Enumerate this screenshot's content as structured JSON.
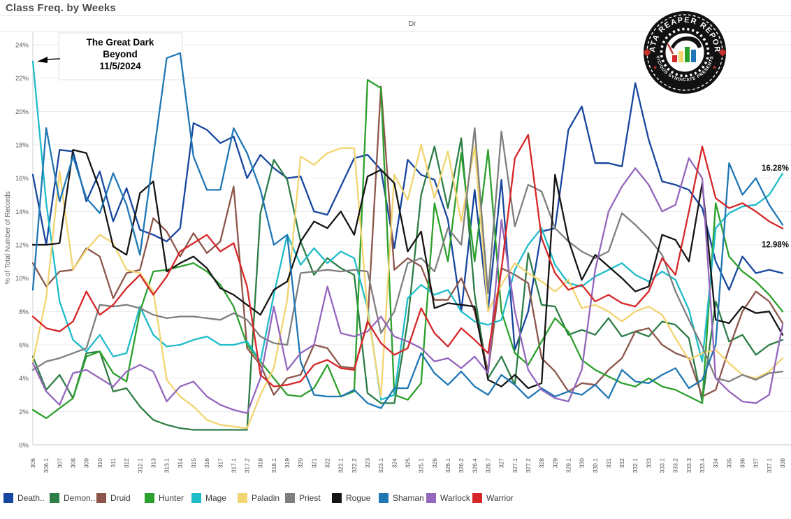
{
  "window": {
    "title": "Class Freq. by Weeks"
  },
  "header": {
    "top_axis_label": "Dr"
  },
  "y_axis": {
    "title": "% of Total Number of Records",
    "tick_suffix": "%"
  },
  "annotation": {
    "lines": [
      "The Great Dark",
      "Beyond",
      "11/5/2024"
    ]
  },
  "end_labels": [
    {
      "text": "16.28%",
      "series": "Mage"
    },
    {
      "text": "12.98%",
      "series": "Warrior"
    }
  ],
  "logo": {
    "top_text": "DATA REAPER REPORT",
    "bottom_text": "VICIOUS SYNDICATE PRESENTS",
    "bar_colors": [
      "#d62728",
      "#f2d470",
      "#2ca02c",
      "#1f77b4"
    ],
    "badge_color": "#111111",
    "accent_color": "#c8322b"
  },
  "chart_data": {
    "type": "line",
    "title": "Class Freq. by Weeks",
    "xlabel": "Dr",
    "ylabel": "% of Total Number of Records",
    "ylim": [
      0,
      24.8
    ],
    "yticks": [
      0,
      2,
      4,
      6,
      8,
      10,
      12,
      14,
      16,
      18,
      20,
      22,
      24
    ],
    "grid": true,
    "legend_position": "bottom",
    "categories": [
      "306",
      "306.1",
      "307",
      "308",
      "309",
      "310",
      "311",
      "312",
      "312.1",
      "313",
      "313.1",
      "314",
      "315",
      "316",
      "317",
      "317.1",
      "317.2",
      "318",
      "318.1",
      "319",
      "320",
      "321",
      "322",
      "322.1",
      "322.2",
      "323",
      "323.1",
      "324",
      "325",
      "325.1",
      "326",
      "326.1",
      "326.2",
      "326.4",
      "326.7",
      "327",
      "327.1",
      "327.2",
      "328",
      "329",
      "329.1",
      "330",
      "330.1",
      "331",
      "332",
      "332.1",
      "333",
      "333.1",
      "333.2",
      "333.3",
      "333.4",
      "334",
      "335",
      "336",
      "337",
      "337.1",
      "338"
    ],
    "series": [
      {
        "name": "Death Knight",
        "legend_label": "Death..",
        "color": "#17469e",
        "values": [
          16.2,
          12.0,
          17.7,
          17.6,
          14.6,
          16.4,
          13.4,
          15.4,
          12.9,
          12.6,
          12.2,
          13.0,
          19.3,
          18.9,
          18.1,
          18.5,
          16.0,
          17.4,
          16.6,
          16.0,
          16.1,
          14.0,
          13.8,
          15.5,
          17.2,
          17.4,
          16.5,
          11.8,
          17.1,
          16.2,
          15.9,
          13.5,
          8.0,
          15.3,
          8.1,
          15.9,
          5.7,
          8.0,
          12.8,
          13.0,
          18.9,
          20.3,
          16.9,
          16.9,
          16.7,
          21.7,
          18.3,
          15.8,
          15.6,
          15.3,
          14.2,
          11.0,
          9.3,
          11.3,
          10.3,
          10.5,
          10.3
        ]
      },
      {
        "name": "Demon Hunter",
        "legend_label": "Demon..",
        "color": "#2d7d46",
        "values": [
          5.3,
          3.3,
          4.2,
          2.8,
          5.5,
          5.6,
          3.2,
          3.4,
          2.3,
          1.5,
          1.2,
          1.0,
          0.9,
          0.9,
          0.9,
          0.9,
          0.9,
          13.9,
          17.1,
          15.9,
          12.2,
          10.2,
          11.2,
          10.6,
          10.2,
          3.1,
          2.5,
          2.5,
          7.4,
          15.0,
          17.9,
          14.2,
          18.4,
          9.0,
          4.0,
          5.3,
          3.6,
          11.5,
          8.4,
          8.3,
          6.6,
          6.9,
          6.6,
          7.6,
          6.5,
          6.8,
          6.5,
          7.4,
          7.2,
          6.4,
          2.6,
          8.6,
          6.2,
          6.6,
          5.4,
          6.0,
          6.3
        ]
      },
      {
        "name": "Druid",
        "legend_label": "Druid",
        "color": "#8c564b",
        "values": [
          10.9,
          9.5,
          10.4,
          10.5,
          11.8,
          11.3,
          8.8,
          10.3,
          10.5,
          13.6,
          12.8,
          11.3,
          12.7,
          11.5,
          12.2,
          15.5,
          5.8,
          4.8,
          3.0,
          4.0,
          4.2,
          6.0,
          5.8,
          4.7,
          4.6,
          7.3,
          21.5,
          10.5,
          11.2,
          10.7,
          8.7,
          8.7,
          10.0,
          8.0,
          4.4,
          10.6,
          10.2,
          9.7,
          5.2,
          4.4,
          3.2,
          3.7,
          3.6,
          4.5,
          5.2,
          6.8,
          7.0,
          6.0,
          5.5,
          5.2,
          2.9,
          3.3,
          5.8,
          8.0,
          9.2,
          8.6,
          7.3
        ]
      },
      {
        "name": "Hunter",
        "legend_label": "Hunter",
        "color": "#2ca02c",
        "values": [
          2.1,
          1.6,
          2.2,
          2.8,
          5.3,
          5.6,
          4.3,
          3.8,
          8.0,
          10.4,
          10.5,
          10.7,
          10.9,
          10.4,
          9.6,
          8.3,
          6.0,
          5.0,
          4.0,
          3.0,
          2.9,
          3.4,
          4.8,
          2.9,
          3.2,
          21.9,
          21.4,
          3.0,
          2.7,
          3.7,
          14.5,
          11.0,
          17.5,
          11.0,
          17.7,
          8.0,
          5.5,
          4.8,
          6.2,
          7.6,
          6.8,
          5.1,
          4.5,
          4.1,
          3.7,
          3.5,
          4.0,
          3.5,
          3.3,
          2.9,
          2.5,
          14.5,
          11.3,
          10.4,
          9.8,
          9.0,
          8.0
        ]
      },
      {
        "name": "Mage",
        "legend_label": "Mage",
        "color": "#1fbcc9",
        "values": [
          23.0,
          14.5,
          8.6,
          6.3,
          5.6,
          6.6,
          5.3,
          5.5,
          8.3,
          6.6,
          5.9,
          6.0,
          6.3,
          6.5,
          6.0,
          6.0,
          6.2,
          5.0,
          9.0,
          12.6,
          10.8,
          11.8,
          10.9,
          11.6,
          11.2,
          8.2,
          2.7,
          3.0,
          8.8,
          9.6,
          9.0,
          9.3,
          8.0,
          7.4,
          7.2,
          7.5,
          10.5,
          12.0,
          13.0,
          10.8,
          9.7,
          9.5,
          10.1,
          10.5,
          10.9,
          10.2,
          9.8,
          10.4,
          9.9,
          8.1,
          5.0,
          13.0,
          13.9,
          14.3,
          14.4,
          15.0,
          16.28
        ]
      },
      {
        "name": "Paladin",
        "legend_label": "Paladin",
        "color": "#f2d470",
        "values": [
          5.0,
          8.8,
          16.4,
          10.5,
          11.7,
          12.6,
          12.1,
          10.5,
          10.3,
          9.2,
          3.9,
          2.9,
          2.3,
          1.5,
          1.2,
          1.1,
          1.0,
          3.0,
          4.6,
          8.7,
          17.3,
          16.8,
          17.5,
          17.8,
          17.8,
          8.0,
          2.9,
          16.2,
          14.7,
          18.0,
          14.8,
          17.6,
          13.4,
          17.9,
          8.0,
          9.6,
          10.9,
          10.3,
          9.8,
          9.2,
          9.9,
          8.2,
          8.4,
          8.0,
          7.4,
          8.0,
          8.3,
          7.8,
          6.4,
          5.1,
          5.5,
          5.7,
          4.9,
          4.2,
          4.0,
          4.4,
          5.2
        ]
      },
      {
        "name": "Priest",
        "legend_label": "Priest",
        "color": "#7f7f7f",
        "values": [
          4.5,
          5.0,
          5.2,
          5.5,
          5.8,
          8.4,
          8.3,
          8.4,
          8.2,
          7.8,
          7.6,
          7.7,
          7.7,
          7.6,
          7.5,
          7.9,
          7.5,
          6.5,
          6.1,
          6.0,
          10.3,
          10.4,
          10.5,
          10.4,
          10.5,
          10.4,
          6.7,
          8.0,
          10.9,
          11.2,
          10.4,
          13.0,
          12.0,
          19.0,
          9.1,
          18.8,
          13.1,
          15.6,
          15.2,
          13.0,
          12.2,
          11.6,
          11.2,
          11.6,
          13.9,
          13.2,
          12.4,
          11.4,
          9.2,
          7.5,
          5.9,
          4.0,
          3.8,
          4.2,
          3.9,
          4.3,
          4.4
        ]
      },
      {
        "name": "Rogue",
        "legend_label": "Rogue",
        "color": "#141414",
        "values": [
          12.0,
          12.0,
          12.1,
          17.7,
          17.5,
          15.3,
          11.9,
          11.4,
          15.1,
          15.8,
          10.4,
          10.9,
          11.3,
          10.6,
          9.4,
          9.0,
          8.4,
          7.8,
          9.3,
          9.8,
          12.2,
          13.4,
          13.0,
          14.0,
          12.6,
          16.1,
          16.5,
          15.7,
          11.6,
          12.8,
          8.2,
          8.5,
          8.4,
          8.3,
          3.9,
          3.5,
          4.2,
          3.4,
          3.7,
          16.2,
          12.3,
          9.9,
          11.4,
          10.7,
          10.0,
          9.2,
          9.5,
          12.6,
          12.3,
          11.0,
          15.7,
          7.5,
          7.3,
          8.3,
          7.9,
          8.0,
          6.6
        ]
      },
      {
        "name": "Shaman",
        "legend_label": "Shaman",
        "color": "#1f77b4",
        "values": [
          9.3,
          19.0,
          14.6,
          17.3,
          14.8,
          13.9,
          16.3,
          14.4,
          11.4,
          17.3,
          23.2,
          23.5,
          17.3,
          15.3,
          15.3,
          19.0,
          17.5,
          15.3,
          12.0,
          12.6,
          5.0,
          3.0,
          2.9,
          2.9,
          3.3,
          2.5,
          2.2,
          3.4,
          3.4,
          5.5,
          4.3,
          3.6,
          4.4,
          3.5,
          3.0,
          4.2,
          3.6,
          2.8,
          3.4,
          2.9,
          3.2,
          3.0,
          3.6,
          2.8,
          4.5,
          3.8,
          3.7,
          4.2,
          4.6,
          3.4,
          3.9,
          6.0,
          16.9,
          15.0,
          16.0,
          14.4,
          13.2
        ]
      },
      {
        "name": "Warlock",
        "legend_label": "Warlock",
        "color": "#9467bd",
        "values": [
          4.9,
          3.2,
          2.4,
          4.3,
          4.5,
          4.0,
          3.5,
          4.4,
          4.8,
          4.4,
          2.6,
          3.5,
          3.8,
          2.9,
          2.4,
          2.1,
          1.9,
          4.0,
          8.3,
          4.5,
          5.5,
          6.0,
          9.5,
          6.7,
          6.5,
          6.8,
          7.7,
          6.5,
          6.2,
          5.8,
          5.0,
          5.2,
          4.6,
          5.3,
          4.3,
          13.5,
          8.0,
          4.5,
          3.3,
          2.8,
          2.6,
          4.5,
          10.5,
          14.0,
          15.5,
          16.6,
          15.6,
          14.0,
          14.4,
          17.2,
          16.0,
          4.0,
          3.2,
          2.6,
          2.5,
          3.0,
          7.2
        ]
      },
      {
        "name": "Warrior",
        "legend_label": "Warrior",
        "color": "#d62728",
        "values": [
          7.7,
          7.0,
          6.8,
          7.4,
          9.2,
          7.8,
          8.4,
          9.4,
          10.2,
          9.0,
          10.1,
          11.6,
          12.1,
          12.6,
          11.6,
          12.1,
          9.5,
          4.2,
          3.5,
          3.6,
          3.8,
          4.8,
          5.1,
          4.6,
          4.5,
          7.4,
          6.1,
          5.4,
          5.8,
          8.2,
          6.7,
          5.9,
          7.0,
          6.3,
          5.5,
          10.5,
          17.2,
          18.6,
          12.4,
          10.3,
          9.3,
          9.6,
          8.6,
          9.0,
          8.5,
          8.3,
          9.2,
          11.2,
          10.2,
          14.0,
          17.9,
          14.8,
          14.2,
          14.5,
          14.0,
          13.4,
          12.98
        ]
      }
    ]
  }
}
